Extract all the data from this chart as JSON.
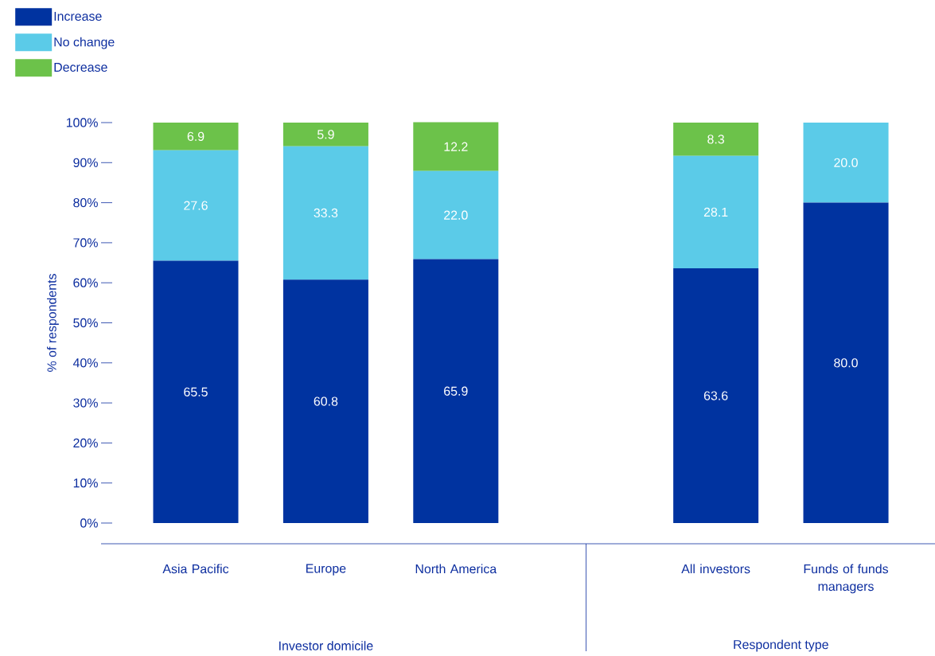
{
  "chart_data": {
    "type": "bar",
    "stacked": true,
    "ylabel": "% of respondents",
    "categories": [
      "Asia Pacific",
      "Europe",
      "North America",
      null,
      "All investors",
      "Funds of funds managers"
    ],
    "series": [
      {
        "name": "Increase",
        "color": "#0033a0",
        "values": [
          65.5,
          60.8,
          65.9,
          null,
          63.6,
          80.0
        ],
        "value_labels": [
          "65.5",
          "60.8",
          "65.9",
          null,
          "63.6",
          "80.0"
        ]
      },
      {
        "name": "No change",
        "color": "#5bcbe8",
        "values": [
          27.6,
          33.3,
          22.0,
          null,
          28.1,
          20.0
        ],
        "value_labels": [
          "27.6",
          "33.3",
          "22.0",
          null,
          "28.1",
          "20.0"
        ]
      },
      {
        "name": "Decrease",
        "color": "#6cc24a",
        "values": [
          6.9,
          5.9,
          12.2,
          null,
          8.3,
          null
        ],
        "value_labels": [
          "6.9",
          "5.9",
          "12.2",
          null,
          "8.3",
          null
        ]
      }
    ],
    "ylim": [
      0,
      100
    ],
    "yticks": [
      {
        "value": 0,
        "label": "0%"
      },
      {
        "value": 10,
        "label": "10%"
      },
      {
        "value": 20,
        "label": "20%"
      },
      {
        "value": 30,
        "label": "30%"
      },
      {
        "value": 40,
        "label": "40%"
      },
      {
        "value": 50,
        "label": "50%"
      },
      {
        "value": 60,
        "label": "60%"
      },
      {
        "value": 70,
        "label": "70%"
      },
      {
        "value": 80,
        "label": "80%"
      },
      {
        "value": 90,
        "label": "90%"
      },
      {
        "value": 100,
        "label": "100%"
      }
    ],
    "annotations": [
      "Investor domicile",
      "Respondent type"
    ],
    "grid": false,
    "legend": "top left"
  }
}
